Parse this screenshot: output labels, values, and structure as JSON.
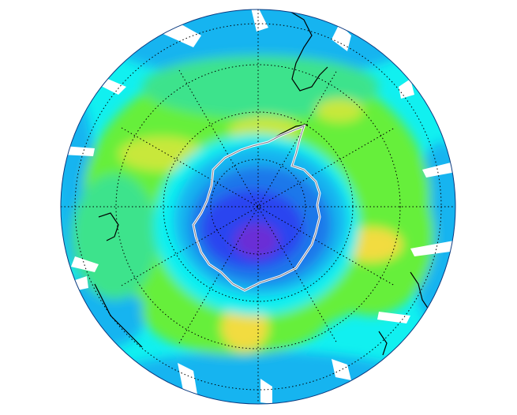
{
  "map": {
    "projection": "south-polar-orthographic",
    "background_color": "#ffffff",
    "ocean_missing_color": "#ffffff",
    "graticule_color": "#000000",
    "coastline_color": "#000000",
    "contour_color": "#ffffff",
    "colors": {
      "deep_violet": "#6a2fd6",
      "blue": "#2a44f0",
      "medium_blue": "#1e78ea",
      "light_blue": "#14b4f0",
      "cyan": "#11f0f0",
      "teal_green": "#3ce38c",
      "green": "#66ef3b",
      "yellow_green": "#c8e83a",
      "yellow": "#f2dc40"
    },
    "icons": {
      "graticule": "dotted-lines-icon",
      "coastline": "coastline-outline-icon",
      "contour": "ozone-hole-contour-icon"
    }
  }
}
